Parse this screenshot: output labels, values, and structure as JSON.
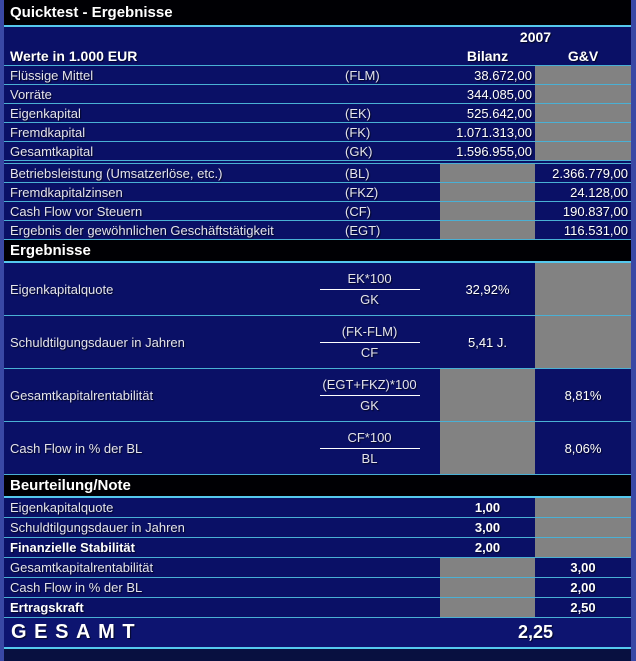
{
  "window": {
    "title": "Quicktest - Ergebnisse"
  },
  "header": {
    "year": "2007",
    "unit_label": "Werte in 1.000 EUR",
    "columns": [
      "Bilanz",
      "G&V"
    ]
  },
  "values": {
    "rows": [
      {
        "label": "Flüssige Mittel",
        "code": "(FLM)",
        "bilanz": "38.672,00",
        "gv": ""
      },
      {
        "label": "Vorräte",
        "code": "",
        "bilanz": "344.085,00",
        "gv": ""
      },
      {
        "label": "Eigenkapital",
        "code": "(EK)",
        "bilanz": "525.642,00",
        "gv": ""
      },
      {
        "label": "Fremdkapital",
        "code": "(FK)",
        "bilanz": "1.071.313,00",
        "gv": ""
      },
      {
        "label": "Gesamtkapital",
        "code": "(GK)",
        "bilanz": "1.596.955,00",
        "gv": ""
      },
      {
        "label": "Betriebsleistung (Umsatzerlöse, etc.)",
        "code": "(BL)",
        "bilanz": "",
        "gv": "2.366.779,00"
      },
      {
        "label": "Fremdkapitalzinsen",
        "code": "(FKZ)",
        "bilanz": "",
        "gv": "24.128,00"
      },
      {
        "label": "Cash Flow vor Steuern",
        "code": "(CF)",
        "bilanz": "",
        "gv": "190.837,00"
      },
      {
        "label": "Ergebnis der gewöhnlichen Geschäftstätigkeit",
        "code": "(EGT)",
        "bilanz": "",
        "gv": "116.531,00"
      }
    ]
  },
  "ergebnisse": {
    "title": "Ergebnisse",
    "rows": [
      {
        "label": "Eigenkapitalquote",
        "numerator": "EK*100",
        "denominator": "GK",
        "value": "32,92%"
      },
      {
        "label": "Schuldtilgungsdauer in Jahren",
        "numerator": "(FK-FLM)",
        "denominator": "CF",
        "value": "5,41 J."
      },
      {
        "label": "Gesamtkapitalrentabilität",
        "numerator": "(EGT+FKZ)*100",
        "denominator": "GK",
        "value": "8,81%"
      },
      {
        "label": "Cash Flow in % der BL",
        "numerator": "CF*100",
        "denominator": "BL",
        "value": "8,06%"
      }
    ]
  },
  "beurteilung": {
    "title": "Beurteilung/Note",
    "rows": [
      {
        "label": "Eigenkapitalquote",
        "value": "1,00"
      },
      {
        "label": "Schuldtilgungsdauer in Jahren",
        "value": "3,00"
      },
      {
        "label": "Finanzielle Stabilität",
        "value": "2,00"
      },
      {
        "label": "Gesamtkapitalrentabilität",
        "value": "3,00"
      },
      {
        "label": "Cash Flow in % der BL",
        "value": "2,00"
      },
      {
        "label": "Ertragskraft",
        "value": "2,50"
      }
    ]
  },
  "gesamt": {
    "label": "GESAMT",
    "value": "2,25"
  },
  "colors": {
    "background": "#0a1066",
    "section_bar": "#000004",
    "accent_line": "#55c8ee",
    "row_line": "#4ab0d4",
    "blocked_cell": "#828282",
    "outer_border": "#3948a5",
    "text": "#ffffff"
  }
}
